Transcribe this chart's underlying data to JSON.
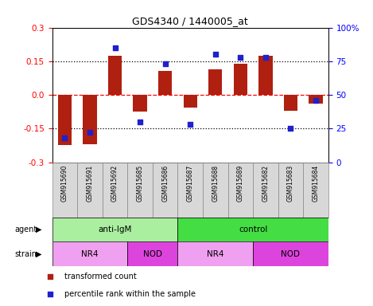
{
  "title": "GDS4340 / 1440005_at",
  "samples": [
    "GSM915690",
    "GSM915691",
    "GSM915692",
    "GSM915685",
    "GSM915686",
    "GSM915687",
    "GSM915688",
    "GSM915689",
    "GSM915682",
    "GSM915683",
    "GSM915684"
  ],
  "transformed_count": [
    -0.225,
    -0.22,
    0.175,
    -0.075,
    0.105,
    -0.055,
    0.115,
    0.14,
    0.175,
    -0.07,
    -0.04
  ],
  "percentile_rank": [
    18,
    22,
    85,
    30,
    73,
    28,
    80,
    78,
    78,
    25,
    46
  ],
  "ylim": [
    -0.3,
    0.3
  ],
  "yticks_left": [
    -0.3,
    -0.15,
    0.0,
    0.15,
    0.3
  ],
  "yticks_right": [
    0,
    25,
    50,
    75,
    100
  ],
  "hlines_dotted": [
    0.15,
    -0.15
  ],
  "hline_dash": 0.0,
  "bar_color": "#b02010",
  "dot_color": "#2020cc",
  "agent_groups": [
    {
      "label": "anti-IgM",
      "start": 0,
      "end": 5,
      "color": "#aaeea0"
    },
    {
      "label": "control",
      "start": 5,
      "end": 11,
      "color": "#44dd44"
    }
  ],
  "strain_groups": [
    {
      "label": "NR4",
      "start": 0,
      "end": 3,
      "color": "#f0a0f0"
    },
    {
      "label": "NOD",
      "start": 3,
      "end": 5,
      "color": "#dd44dd"
    },
    {
      "label": "NR4",
      "start": 5,
      "end": 8,
      "color": "#f0a0f0"
    },
    {
      "label": "NOD",
      "start": 8,
      "end": 11,
      "color": "#dd44dd"
    }
  ],
  "legend_items": [
    {
      "label": "transformed count",
      "color": "#b02010"
    },
    {
      "label": "percentile rank within the sample",
      "color": "#2020cc"
    }
  ],
  "background_color": "#ffffff",
  "xticklabel_bg": "#d8d8d8",
  "xticklabel_border": "#888888"
}
